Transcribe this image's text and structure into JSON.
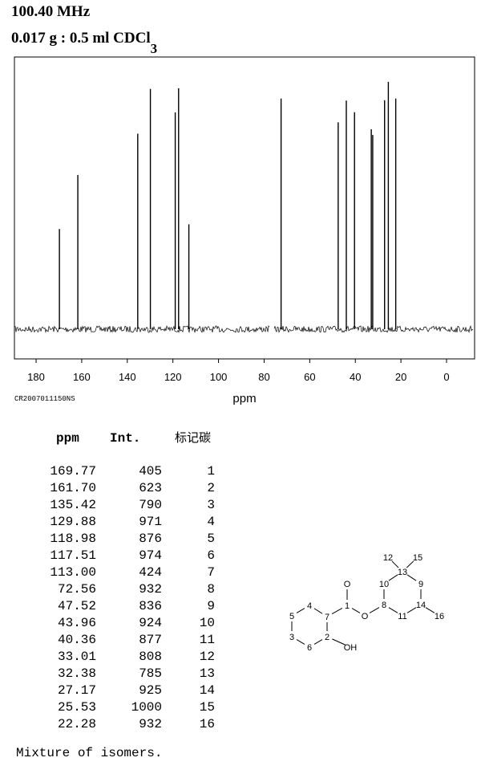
{
  "header": {
    "frequency": "100.40 MHz",
    "sample": "0.017 g : 0.5 ml CDCl",
    "sample_subscript": "3"
  },
  "chart_data": {
    "type": "stick",
    "x_label": "ppm",
    "code": "CR2007011150NS",
    "x": [
      169.77,
      161.7,
      135.42,
      129.88,
      118.98,
      117.51,
      113.0,
      72.56,
      47.52,
      43.96,
      40.36,
      33.01,
      32.38,
      27.17,
      25.53,
      22.28
    ],
    "values": [
      405,
      623,
      790,
      971,
      876,
      974,
      424,
      932,
      836,
      924,
      877,
      808,
      785,
      925,
      1000,
      932
    ],
    "color": "#000000",
    "xlim": [
      189.5,
      -12.3
    ],
    "xticks": [
      180,
      160,
      140,
      120,
      100,
      80,
      60,
      40,
      20,
      0
    ],
    "ylim": [
      -120,
      1100
    ]
  },
  "table": {
    "columns": [
      "ppm",
      "Int.",
      "标记碳"
    ],
    "rows": [
      [
        "169.77",
        "405",
        "1"
      ],
      [
        "161.70",
        "623",
        "2"
      ],
      [
        "135.42",
        "790",
        "3"
      ],
      [
        "129.88",
        "971",
        "4"
      ],
      [
        "118.98",
        "876",
        "5"
      ],
      [
        "117.51",
        "974",
        "6"
      ],
      [
        "113.00",
        "424",
        "7"
      ],
      [
        "72.56",
        "932",
        "8"
      ],
      [
        "47.52",
        "836",
        "9"
      ],
      [
        "43.96",
        "924",
        "10"
      ],
      [
        "40.36",
        "877",
        "11"
      ],
      [
        "33.01",
        "808",
        "12"
      ],
      [
        "32.38",
        "785",
        "13"
      ],
      [
        "27.17",
        "925",
        "14"
      ],
      [
        "25.53",
        "1000",
        "15"
      ],
      [
        "22.28",
        "932",
        "16"
      ]
    ]
  },
  "structure": {
    "labels": [
      "1",
      "2",
      "3",
      "4",
      "5",
      "6",
      "7",
      "8",
      "9",
      "10",
      "11",
      "12",
      "13",
      "14",
      "15",
      "16",
      "O",
      "O",
      "OH"
    ]
  },
  "note": "Mixture of isomers."
}
